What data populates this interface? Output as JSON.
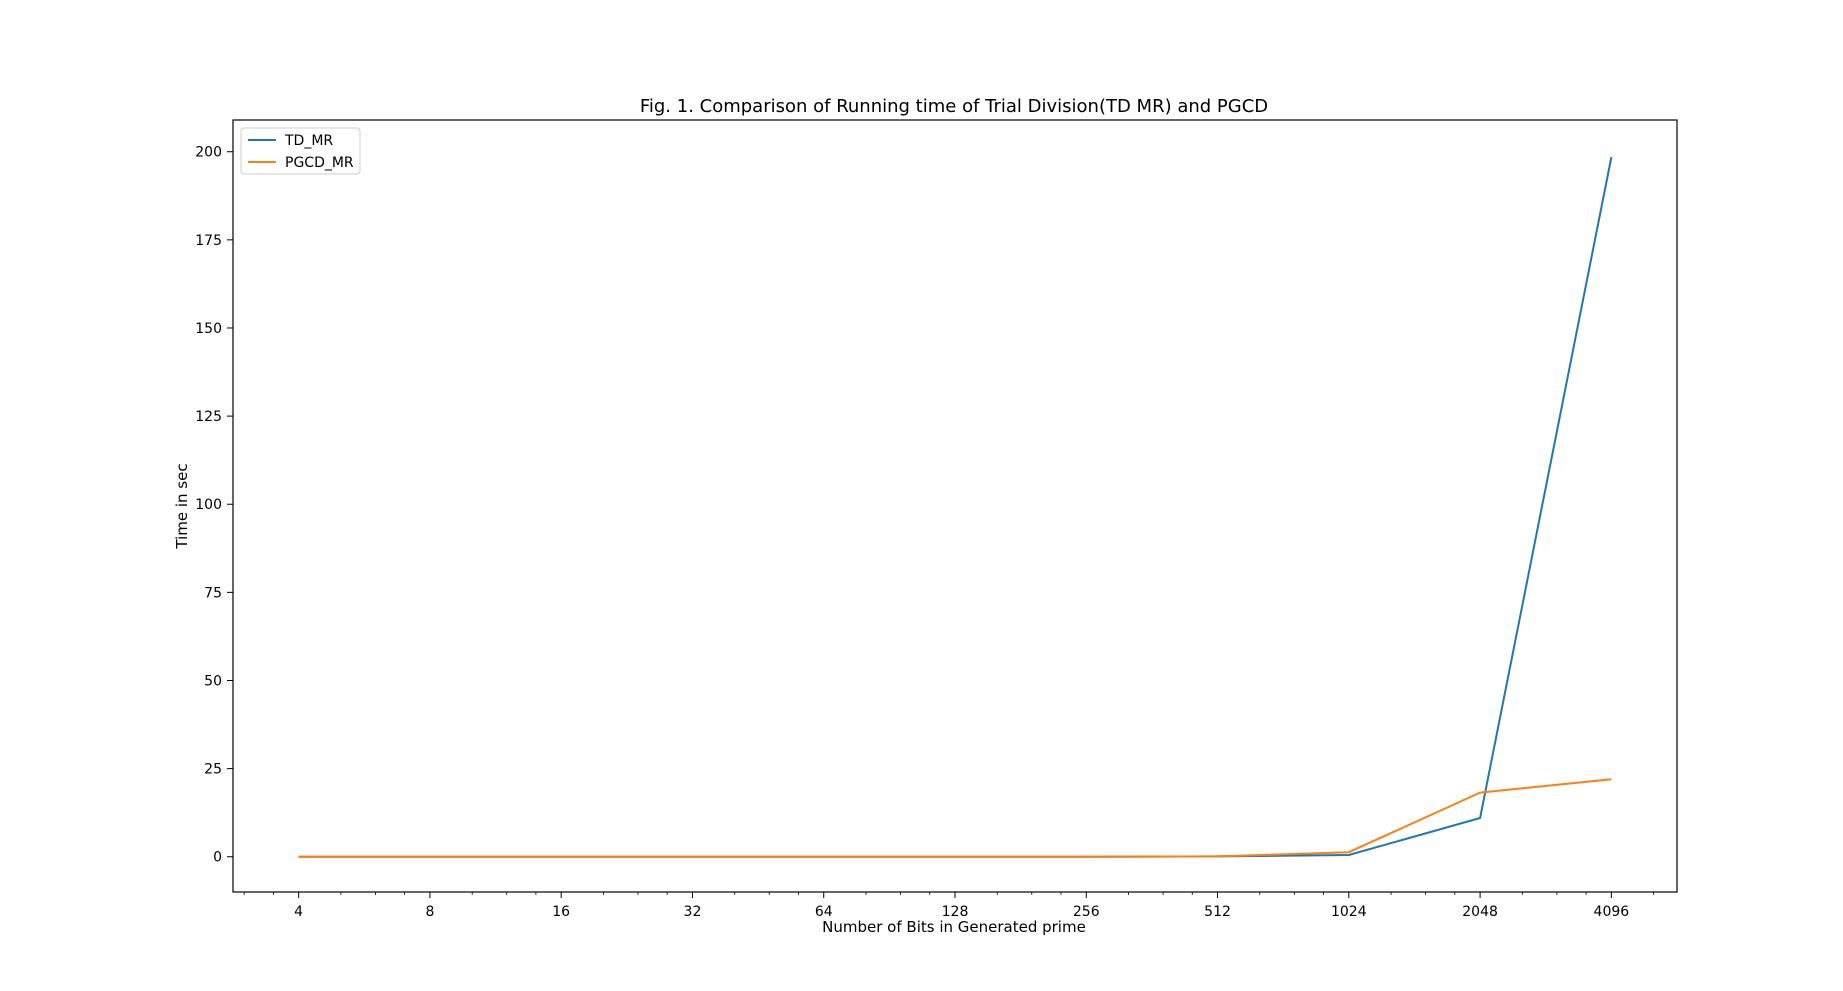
{
  "chart_data": {
    "type": "line",
    "title": "Fig. 1. Comparison of Running time of Trial Division(TD MR) and PGCD",
    "xlabel": "Number of Bits in Generated prime",
    "ylabel": "Time in sec",
    "x_scale": "log2",
    "x": [
      4,
      8,
      16,
      32,
      64,
      128,
      256,
      512,
      1024,
      2048,
      4096
    ],
    "x_tick_labels": [
      "4",
      "8",
      "16",
      "32",
      "64",
      "128",
      "256",
      "512",
      "1024",
      "2048",
      "4096"
    ],
    "y_ticks": [
      0,
      25,
      50,
      75,
      100,
      125,
      150,
      175,
      200
    ],
    "ylim": [
      -10,
      209
    ],
    "legend_position": "top-left",
    "grid": false,
    "series": [
      {
        "name": "TD_MR",
        "color": "#1f77b4",
        "values": [
          0,
          0,
          0,
          0,
          0,
          0,
          0,
          0.1,
          0.5,
          11,
          198.5
        ]
      },
      {
        "name": "PGCD_MR",
        "color": "#ff7f0e",
        "values": [
          0,
          0,
          0,
          0,
          0,
          0,
          0,
          0.1,
          1.3,
          18.2,
          22
        ]
      }
    ]
  }
}
